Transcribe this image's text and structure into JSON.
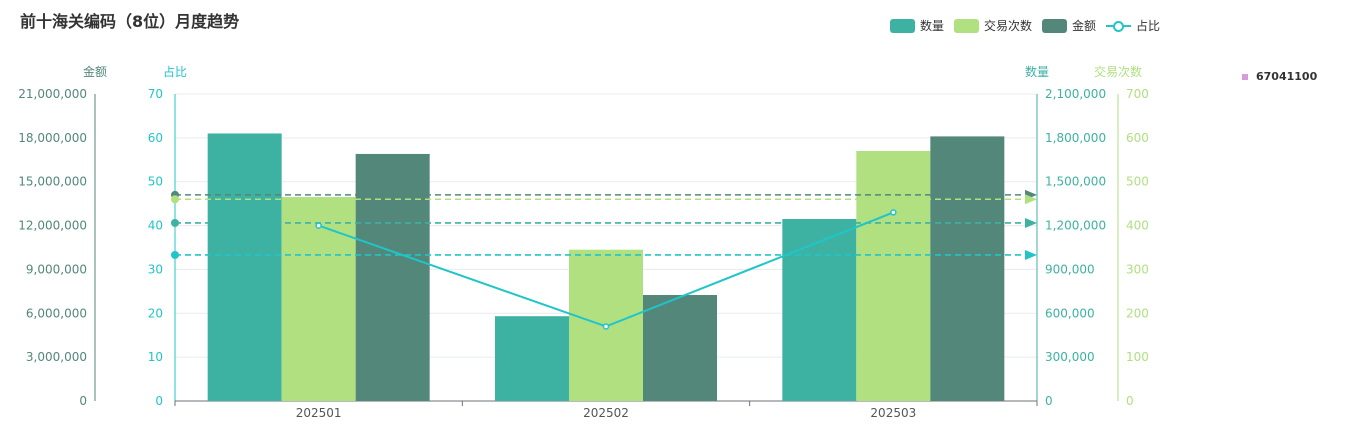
{
  "title": "前十海关编码（8位）月度趋势",
  "legend": {
    "items": [
      {
        "label": "数量",
        "color": "#3DB2A2",
        "kind": "bar"
      },
      {
        "label": "交易次数",
        "color": "#B0E080",
        "kind": "bar"
      },
      {
        "label": "金额",
        "color": "#53877A",
        "kind": "bar"
      },
      {
        "label": "占比",
        "color": "#21C5C9",
        "kind": "line"
      }
    ]
  },
  "side_legend": {
    "label": "67041100",
    "color": "#D69BDD"
  },
  "chart_data": {
    "type": "bar",
    "categories": [
      "202501",
      "202502",
      "202503"
    ],
    "series": [
      {
        "name": "数量",
        "kind": "bar",
        "axis": "数量",
        "color": "#3DB2A2",
        "values": [
          1830000,
          580000,
          1245000
        ]
      },
      {
        "name": "交易次数",
        "kind": "bar",
        "axis": "交易次数",
        "color": "#B0E080",
        "values": [
          465,
          345,
          570
        ]
      },
      {
        "name": "金额",
        "kind": "bar",
        "axis": "金额",
        "color": "#53877A",
        "values": [
          16900000,
          7250000,
          18100000
        ]
      },
      {
        "name": "占比",
        "kind": "line",
        "axis": "占比",
        "color": "#21C5C9",
        "values": [
          40,
          17,
          43
        ]
      }
    ],
    "axes": {
      "金额": {
        "label": "金额",
        "min": 0,
        "max": 21000000,
        "ticks": [
          "0",
          "3,000,000",
          "6,000,000",
          "9,000,000",
          "12,000,000",
          "15,000,000",
          "18,000,000",
          "21,000,000"
        ],
        "color": "#53877A"
      },
      "占比": {
        "label": "占比",
        "min": 0,
        "max": 70,
        "ticks": [
          "0",
          "10",
          "20",
          "30",
          "40",
          "50",
          "60",
          "70"
        ],
        "color": "#21C5C9"
      },
      "数量": {
        "label": "数量",
        "min": 0,
        "max": 2100000,
        "ticks": [
          "0",
          "300,000",
          "600,000",
          "900,000",
          "1,200,000",
          "1,500,000",
          "1,800,000",
          "2,100,000"
        ],
        "color": "#3DB2A2"
      },
      "交易次数": {
        "label": "交易次数",
        "min": 0,
        "max": 700,
        "ticks": [
          "0",
          "100",
          "200",
          "300",
          "400",
          "500",
          "600",
          "700"
        ],
        "color": "#B0E080"
      }
    },
    "mark_lines": [
      {
        "series": "金额",
        "value": 14100000,
        "color": "#53877A"
      },
      {
        "series": "交易次数",
        "value": 460,
        "color": "#B0E080"
      },
      {
        "series": "数量",
        "value": 1218000,
        "color": "#3DB2A2"
      },
      {
        "series": "占比",
        "value": 33.3,
        "color": "#21C5C9"
      }
    ],
    "grid": true
  }
}
